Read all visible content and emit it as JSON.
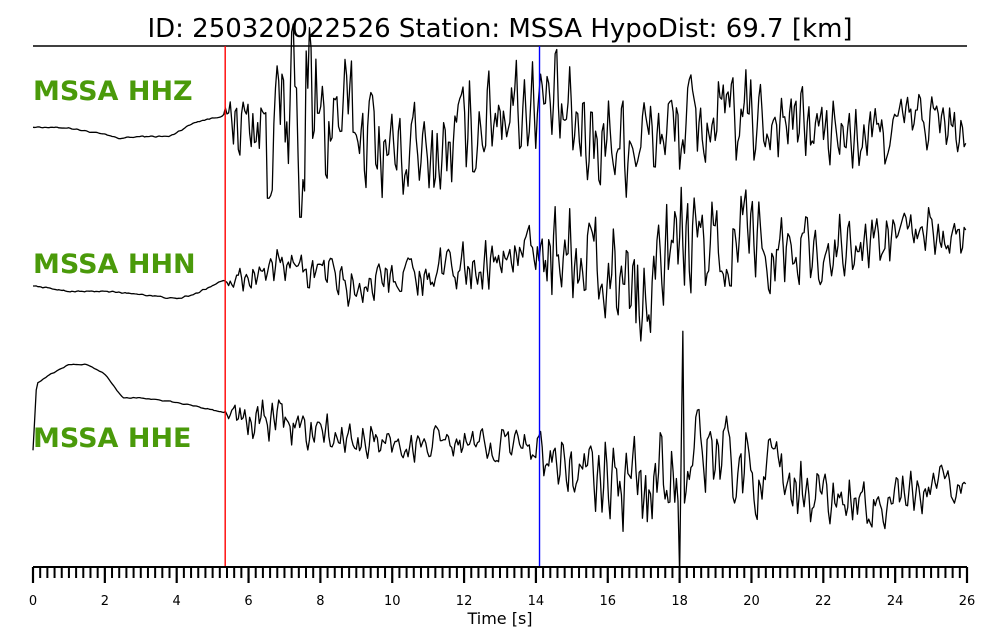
{
  "header": {
    "title": "ID: 250320022526   Station: MSSA   HypoDist:     69.7 [km]"
  },
  "chart_data": {
    "type": "line",
    "xlabel": "Time [s]",
    "xlim": [
      0,
      26
    ],
    "x_ticks": [
      "0",
      "2",
      "4",
      "6",
      "8",
      "10",
      "12",
      "14",
      "16",
      "18",
      "20",
      "22",
      "24",
      "26"
    ],
    "minor_tick_step": 0.2,
    "grid": false,
    "label_color": "#4a9a0a",
    "trace_color": "#000000",
    "picks": [
      {
        "phase": "P",
        "time": 5.35,
        "color": "#ff0000"
      },
      {
        "phase": "S",
        "time": 14.1,
        "color": "#0000ff"
      }
    ],
    "series": [
      {
        "name": "MSSA HHZ",
        "envelope": [
          [
            0,
            0.004
          ],
          [
            2,
            0.006
          ],
          [
            4,
            0.006
          ],
          [
            5.3,
            0.006
          ],
          [
            5.6,
            0.3
          ],
          [
            6.5,
            0.45
          ],
          [
            7.3,
            0.9
          ],
          [
            8.5,
            0.55
          ],
          [
            10,
            0.42
          ],
          [
            12,
            0.42
          ],
          [
            14,
            0.45
          ],
          [
            16,
            0.45
          ],
          [
            18,
            0.42
          ],
          [
            20,
            0.38
          ],
          [
            22,
            0.3
          ],
          [
            24,
            0.28
          ],
          [
            26,
            0.22
          ]
        ],
        "trend": [
          [
            0,
            0.0
          ],
          [
            1,
            -0.01
          ],
          [
            2,
            -0.08
          ],
          [
            2.4,
            -0.12
          ],
          [
            3,
            -0.1
          ],
          [
            3.8,
            -0.1
          ],
          [
            4.5,
            0.05
          ],
          [
            5.3,
            0.12
          ],
          [
            6,
            0.05
          ],
          [
            7,
            0.0
          ],
          [
            8,
            0.1
          ],
          [
            9,
            0.05
          ],
          [
            10,
            -0.25
          ],
          [
            11,
            -0.35
          ],
          [
            12,
            -0.1
          ],
          [
            13,
            0.25
          ],
          [
            14,
            0.3
          ],
          [
            15,
            0.0
          ],
          [
            16,
            -0.1
          ],
          [
            17,
            -0.1
          ],
          [
            18,
            0.0
          ],
          [
            19,
            0.05
          ],
          [
            20,
            0.08
          ],
          [
            21,
            0.08
          ],
          [
            22,
            -0.05
          ],
          [
            23,
            -0.15
          ],
          [
            24,
            0.0
          ],
          [
            25,
            0.1
          ],
          [
            26,
            -0.12
          ]
        ],
        "spikes": [
          [
            7.2,
            1.0
          ],
          [
            7.45,
            -0.95
          ],
          [
            6.55,
            -0.75
          ],
          [
            7.6,
            0.8
          ]
        ]
      },
      {
        "name": "MSSA HHN",
        "envelope": [
          [
            0,
            0.004
          ],
          [
            2,
            0.006
          ],
          [
            4,
            0.006
          ],
          [
            5.3,
            0.006
          ],
          [
            5.6,
            0.12
          ],
          [
            8,
            0.16
          ],
          [
            10,
            0.18
          ],
          [
            12,
            0.2
          ],
          [
            14.0,
            0.22
          ],
          [
            14.3,
            0.45
          ],
          [
            16,
            0.42
          ],
          [
            18,
            0.45
          ],
          [
            20,
            0.42
          ],
          [
            22,
            0.28
          ],
          [
            24,
            0.22
          ],
          [
            26,
            0.18
          ]
        ],
        "trend": [
          [
            0,
            -0.06
          ],
          [
            1,
            -0.12
          ],
          [
            2,
            -0.12
          ],
          [
            3,
            -0.15
          ],
          [
            4,
            -0.2
          ],
          [
            4.5,
            -0.15
          ],
          [
            5.3,
            0.0
          ],
          [
            6,
            0.05
          ],
          [
            7,
            0.12
          ],
          [
            8,
            0.1
          ],
          [
            9,
            -0.1
          ],
          [
            10,
            0.12
          ],
          [
            11,
            0.05
          ],
          [
            12,
            0.15
          ],
          [
            13,
            0.2
          ],
          [
            14,
            0.35
          ],
          [
            15,
            0.35
          ],
          [
            16,
            0.1
          ],
          [
            17,
            0.0
          ],
          [
            18,
            0.3
          ],
          [
            19,
            0.4
          ],
          [
            20,
            0.45
          ],
          [
            21,
            0.35
          ],
          [
            22,
            0.3
          ],
          [
            23,
            0.35
          ],
          [
            24,
            0.45
          ],
          [
            25,
            0.5
          ],
          [
            26,
            0.42
          ]
        ],
        "spikes": [
          [
            19.9,
            0.55
          ],
          [
            16.8,
            -0.45
          ]
        ]
      },
      {
        "name": "MSSA HHE",
        "envelope": [
          [
            0,
            0.004
          ],
          [
            3,
            0.004
          ],
          [
            5.3,
            0.006
          ],
          [
            5.6,
            0.12
          ],
          [
            7,
            0.2
          ],
          [
            8,
            0.18
          ],
          [
            10,
            0.14
          ],
          [
            12,
            0.14
          ],
          [
            14.0,
            0.16
          ],
          [
            14.3,
            0.22
          ],
          [
            16,
            0.35
          ],
          [
            18,
            0.45
          ],
          [
            20,
            0.38
          ],
          [
            22,
            0.2
          ],
          [
            24,
            0.2
          ],
          [
            26,
            0.16
          ]
        ],
        "trend": [
          [
            0,
            0.0
          ],
          [
            0.1,
            0.7
          ],
          [
            0.5,
            0.8
          ],
          [
            1,
            0.9
          ],
          [
            1.5,
            0.9
          ],
          [
            2,
            0.8
          ],
          [
            2.5,
            0.55
          ],
          [
            3,
            0.55
          ],
          [
            4,
            0.5
          ],
          [
            5.3,
            0.4
          ],
          [
            6,
            0.3
          ],
          [
            7,
            0.3
          ],
          [
            8,
            0.15
          ],
          [
            9,
            0.1
          ],
          [
            10,
            0.05
          ],
          [
            11,
            0.05
          ],
          [
            12,
            0.05
          ],
          [
            13,
            0.05
          ],
          [
            14,
            0.08
          ],
          [
            15,
            -0.25
          ],
          [
            16,
            -0.35
          ],
          [
            17,
            -0.4
          ],
          [
            18,
            -0.15
          ],
          [
            19,
            0.0
          ],
          [
            20,
            -0.25
          ],
          [
            21,
            -0.35
          ],
          [
            22,
            -0.5
          ],
          [
            23,
            -0.6
          ],
          [
            24,
            -0.55
          ],
          [
            25,
            -0.45
          ],
          [
            26,
            -0.35
          ]
        ],
        "spikes": [
          [
            18.1,
            1.25
          ],
          [
            18.0,
            -1.3
          ]
        ]
      }
    ]
  }
}
